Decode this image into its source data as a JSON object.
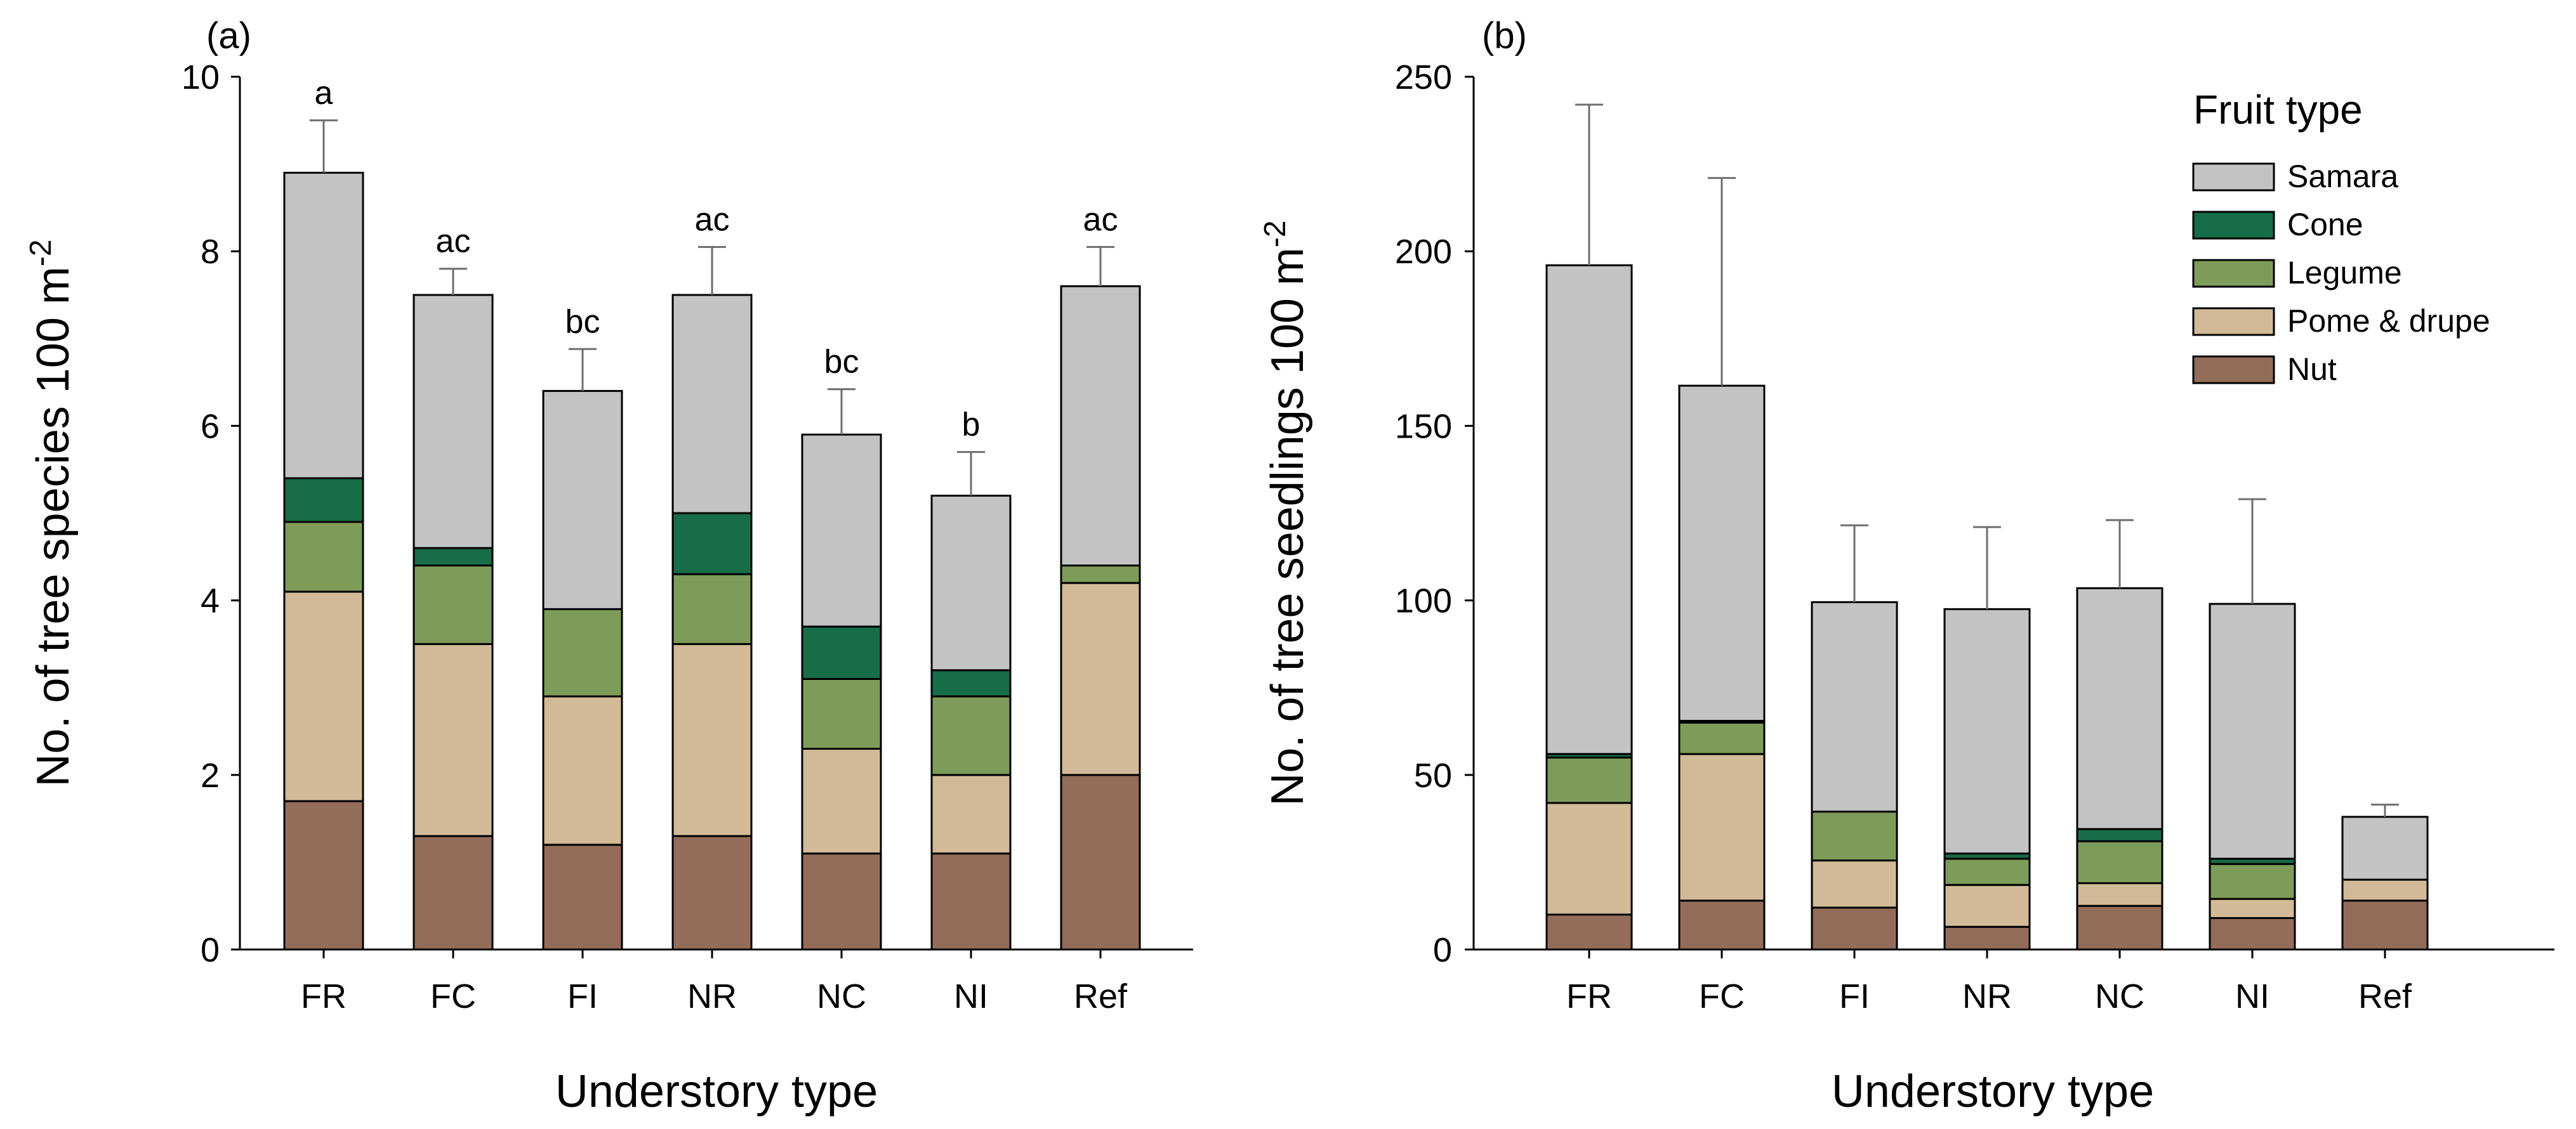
{
  "colors": {
    "Samara": "#c3c3c3",
    "Cone": "#176d47",
    "Legume": "#7e9c59",
    "Pome & drupe": "#d2ba98",
    "Nut": "#936d59"
  },
  "legend": {
    "title": "Fruit type",
    "order": [
      "Samara",
      "Cone",
      "Legume",
      "Pome & drupe",
      "Nut"
    ],
    "placement": "top-right of panel (b)"
  },
  "chart_data": [
    {
      "type": "bar",
      "stacked": true,
      "panel_label": "(a)",
      "xlabel": "Understory type",
      "ylabel": "No. of tree species 100 m",
      "ylabel_superscript": "-2",
      "ylim": [
        0,
        10
      ],
      "yticks": [
        0,
        2,
        4,
        6,
        8,
        10
      ],
      "categories": [
        "FR",
        "FC",
        "FI",
        "NR",
        "NC",
        "NI",
        "Ref"
      ],
      "series": [
        {
          "name": "Nut",
          "values": [
            1.7,
            1.3,
            1.2,
            1.3,
            1.1,
            1.1,
            2.0
          ]
        },
        {
          "name": "Pome & drupe",
          "values": [
            2.4,
            2.2,
            1.7,
            2.2,
            1.2,
            0.9,
            2.2
          ]
        },
        {
          "name": "Legume",
          "values": [
            0.8,
            0.9,
            1.0,
            0.8,
            0.8,
            0.9,
            0.2
          ]
        },
        {
          "name": "Cone",
          "values": [
            0.5,
            0.2,
            0.0,
            0.7,
            0.6,
            0.3,
            0.0
          ]
        },
        {
          "name": "Samara",
          "values": [
            3.5,
            2.9,
            2.5,
            2.5,
            2.2,
            2.0,
            3.2
          ]
        }
      ],
      "totals": [
        8.9,
        7.5,
        6.4,
        7.5,
        5.9,
        5.2,
        7.6
      ],
      "error_upper": [
        9.5,
        7.8,
        6.88,
        8.05,
        6.42,
        5.7,
        8.05
      ],
      "significance_letters": [
        "a",
        "ac",
        "bc",
        "ac",
        "bc",
        "b",
        "ac"
      ]
    },
    {
      "type": "bar",
      "stacked": true,
      "panel_label": "(b)",
      "xlabel": "Understory type",
      "ylabel": "No. of tree seedlings 100 m",
      "ylabel_superscript": "-2",
      "ylim": [
        0,
        250
      ],
      "yticks": [
        0,
        50,
        100,
        150,
        200,
        250
      ],
      "categories": [
        "FR",
        "FC",
        "FI",
        "NR",
        "NC",
        "NI",
        "Ref"
      ],
      "series": [
        {
          "name": "Nut",
          "values": [
            10,
            14,
            12,
            6.5,
            12.5,
            9,
            14
          ]
        },
        {
          "name": "Pome & drupe",
          "values": [
            32,
            42,
            13.5,
            12,
            6.5,
            5.5,
            6
          ]
        },
        {
          "name": "Legume",
          "values": [
            13,
            9,
            14,
            7.5,
            12,
            10,
            0
          ]
        },
        {
          "name": "Cone",
          "values": [
            1,
            0.5,
            0,
            1.5,
            3.5,
            1.5,
            0
          ]
        },
        {
          "name": "Samara",
          "values": [
            140,
            96,
            60,
            70,
            69,
            73,
            18
          ]
        }
      ],
      "totals": [
        196,
        161.5,
        99.5,
        97.5,
        103.5,
        99,
        38
      ],
      "error_upper": [
        242,
        221,
        121.5,
        121,
        123,
        129,
        41.5
      ]
    }
  ]
}
